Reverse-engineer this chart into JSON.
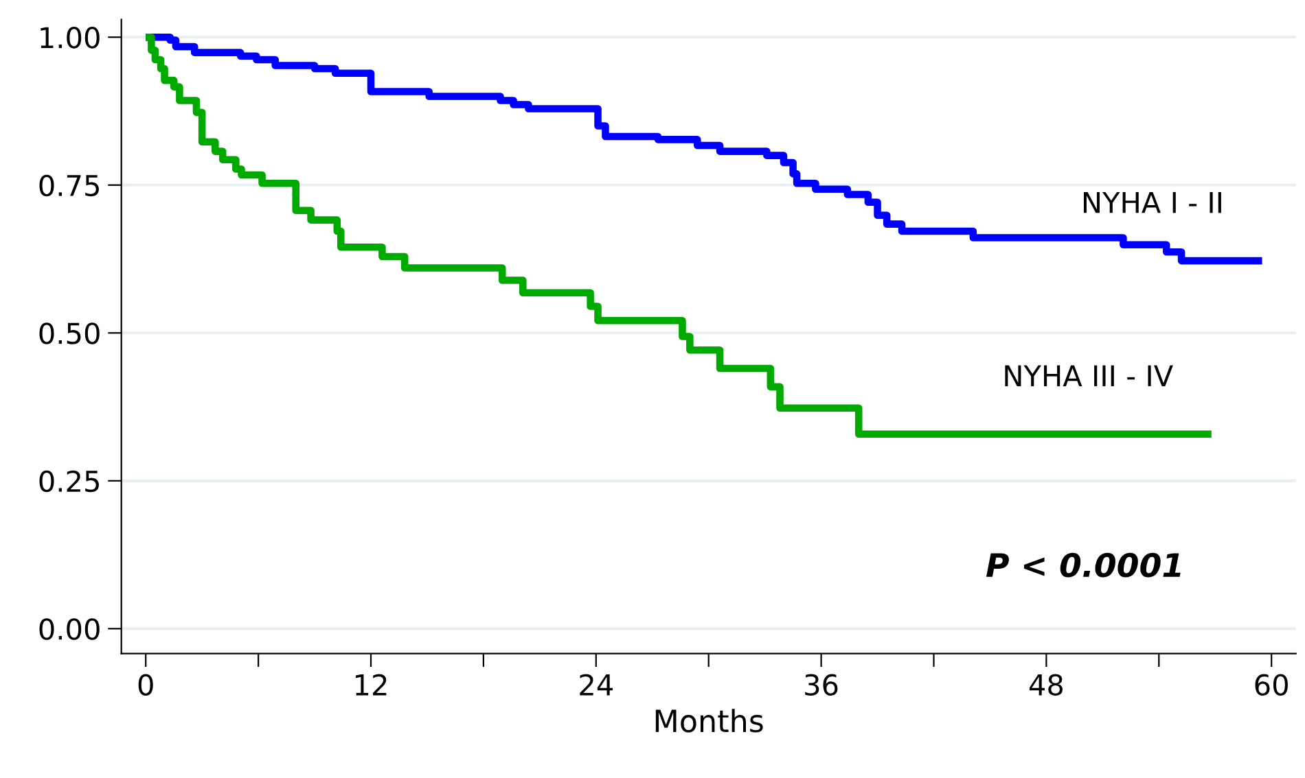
{
  "chart_data": {
    "type": "step",
    "xlabel": "Months",
    "grid": "y",
    "legend": false,
    "xlim": [
      -1.3,
      61.3
    ],
    "ylim": [
      -0.042,
      1.03
    ],
    "xticks": [
      0,
      {
        "value": 6,
        "label": null
      },
      12,
      {
        "value": 18,
        "label": null
      },
      24,
      {
        "value": 30,
        "label": null
      },
      36,
      {
        "value": 42,
        "label": null
      },
      48,
      {
        "value": 54,
        "label": null
      },
      60
    ],
    "yticks": [
      {
        "value": 0,
        "label": "0.00"
      },
      {
        "value": 0.25,
        "label": "0.25"
      },
      {
        "value": 0.5,
        "label": "0.50"
      },
      {
        "value": 0.75,
        "label": "0.75"
      },
      {
        "value": 1,
        "label": "1.00"
      }
    ],
    "series": [
      {
        "name": "NYHA I - II",
        "color": "#0000ff",
        "x": [
          0,
          1.3,
          1.6,
          2.6,
          5.05,
          5.9,
          6.9,
          9.0,
          10.1,
          12.0,
          15.1,
          18.9,
          19.6,
          20.4,
          24.1,
          24.5,
          27.3,
          29.4,
          30.6,
          33.1,
          34.0,
          34.5,
          34.7,
          35.7,
          37.4,
          38.5,
          39.0,
          39.5,
          40.3,
          44.1,
          52.1,
          54.4,
          55.2,
          59.5
        ],
        "values": [
          1.0,
          0.995,
          0.984,
          0.974,
          0.968,
          0.962,
          0.952,
          0.947,
          0.939,
          0.908,
          0.9,
          0.893,
          0.886,
          0.879,
          0.85,
          0.832,
          0.827,
          0.817,
          0.807,
          0.8,
          0.788,
          0.769,
          0.753,
          0.743,
          0.734,
          0.721,
          0.699,
          0.684,
          0.672,
          0.661,
          0.649,
          0.637,
          0.622,
          0.622
        ]
      },
      {
        "name": "NYHA III - IV",
        "color": "#00aa00",
        "x": [
          0,
          0.3,
          0.5,
          0.8,
          1.0,
          1.5,
          1.8,
          2.7,
          3.0,
          3.7,
          4.1,
          4.8,
          5.1,
          6.2,
          8.0,
          8.8,
          10.2,
          10.4,
          12.6,
          13.8,
          19.0,
          20.1,
          23.7,
          24.1,
          28.6,
          29.0,
          30.6,
          33.3,
          33.8,
          38.0,
          56.8
        ],
        "values": [
          1.0,
          0.978,
          0.962,
          0.947,
          0.927,
          0.916,
          0.893,
          0.873,
          0.823,
          0.807,
          0.793,
          0.777,
          0.767,
          0.753,
          0.707,
          0.691,
          0.672,
          0.645,
          0.629,
          0.61,
          0.589,
          0.568,
          0.545,
          0.521,
          0.494,
          0.471,
          0.44,
          0.409,
          0.373,
          0.329,
          0.329
        ]
      }
    ],
    "annotations": [
      "P < 0.0001"
    ]
  }
}
